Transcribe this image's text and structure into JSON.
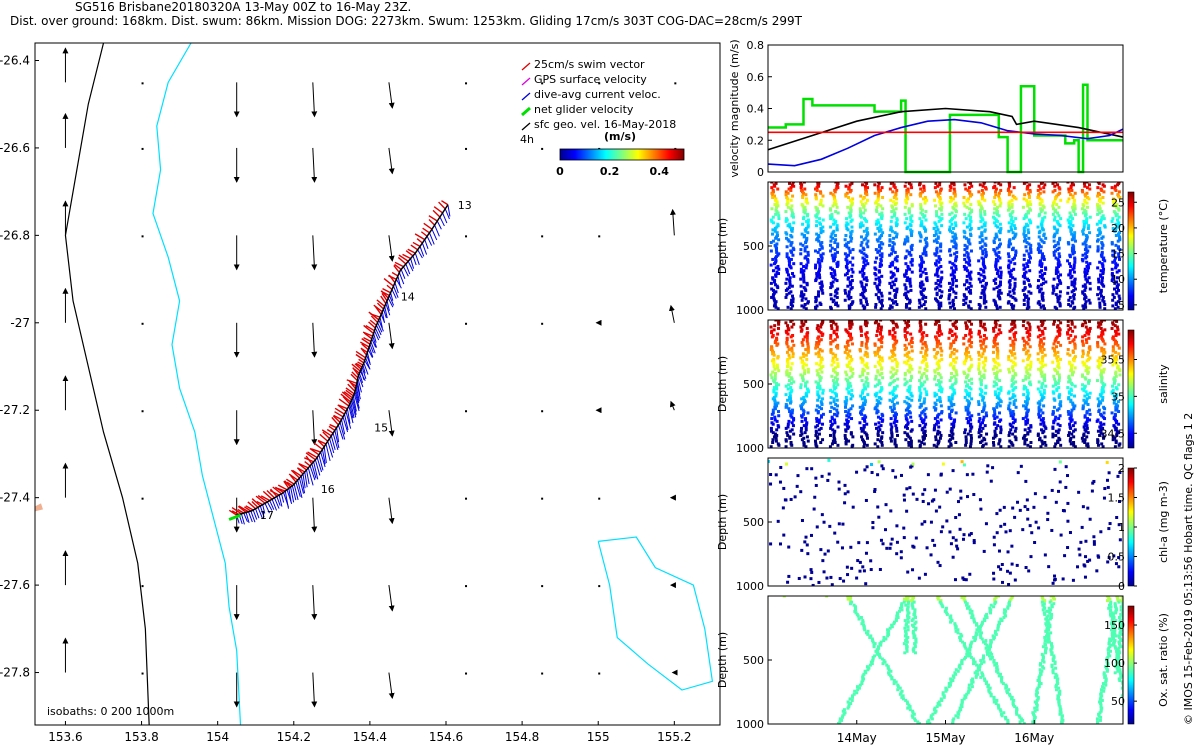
{
  "header": {
    "line1": "SG516 Brisbane20180320A 13-May 00Z to 16-May 23Z.",
    "line2": "Dist. over ground: 168km. Dist. swum: 86km. Mission DOG: 2273km. Swum: 1253km. Gliding 17cm/s 303T COG-DAC=28cm/s 299T"
  },
  "credit": "© IMOS 15-Feb-2019 05:13:56 Hobart time. QC flags 1  2",
  "colors": {
    "swim": "#e00000",
    "gps": "#e000e0",
    "dac": "#0000e0",
    "net": "#00e000",
    "coast": "#00e0ff",
    "isobath": "#000000",
    "ref": "#ff0000"
  },
  "chart_data": [
    {
      "type": "scatter",
      "name": "map",
      "title": "",
      "xlim": [
        153.52,
        155.32
      ],
      "ylim": [
        -27.92,
        -26.36
      ],
      "xticks": [
        "153.6",
        "153.8",
        "154",
        "154.2",
        "154.4",
        "154.6",
        "154.8",
        "155",
        "155.2"
      ],
      "xtick_values": [
        153.6,
        153.8,
        154.0,
        154.2,
        154.4,
        154.6,
        154.8,
        155.0,
        155.2
      ],
      "yticks": [
        "-26.4",
        "-26.6",
        "-26.8",
        "-27",
        "-27.2",
        "-27.4",
        "-27.6",
        "-27.8"
      ],
      "ytick_values": [
        -26.4,
        -26.6,
        -26.8,
        -27.0,
        -27.2,
        -27.4,
        -27.6,
        -27.8
      ],
      "legend": {
        "items": [
          "25cm/s swim vector",
          "GPS surface velocity",
          "dive-avg current veloc.",
          "net glider velocity",
          "sfc geo. vel. 16-May-2018"
        ],
        "time_label": "4h",
        "colorbar_title": "(m/s)",
        "colorbar_ticks": [
          "0",
          "0.2",
          "0.4"
        ],
        "colorbar_range": [
          0,
          0.5
        ]
      },
      "isobath_label": "isobaths: 0   200  1000m",
      "day_labels": [
        {
          "label": "13",
          "lon": 154.61,
          "lat": -26.73
        },
        {
          "label": "14",
          "lon": 154.46,
          "lat": -26.94
        },
        {
          "label": "15",
          "lon": 154.39,
          "lat": -27.24
        },
        {
          "label": "16",
          "lon": 154.25,
          "lat": -27.38
        },
        {
          "label": "17",
          "lon": 154.09,
          "lat": -27.44
        }
      ],
      "track": [
        [
          154.605,
          -26.73
        ],
        [
          154.56,
          -26.79
        ],
        [
          154.52,
          -26.84
        ],
        [
          154.48,
          -26.88
        ],
        [
          154.455,
          -26.93
        ],
        [
          154.435,
          -26.97
        ],
        [
          154.415,
          -27.01
        ],
        [
          154.4,
          -27.05
        ],
        [
          154.385,
          -27.09
        ],
        [
          154.37,
          -27.12
        ],
        [
          154.36,
          -27.16
        ],
        [
          154.345,
          -27.19
        ],
        [
          154.32,
          -27.23
        ],
        [
          154.29,
          -27.27
        ],
        [
          154.26,
          -27.31
        ],
        [
          154.23,
          -27.34
        ],
        [
          154.2,
          -27.37
        ],
        [
          154.17,
          -27.39
        ],
        [
          154.13,
          -27.41
        ],
        [
          154.09,
          -27.43
        ],
        [
          154.05,
          -27.44
        ]
      ],
      "surface_currents": {
        "lons": [
          153.6,
          153.8,
          154.05,
          154.25,
          154.45,
          154.65,
          154.85,
          155.0,
          155.2
        ],
        "lats": [
          -26.45,
          -26.6,
          -26.8,
          -27.0,
          -27.2,
          -27.4,
          -27.6,
          -27.8
        ],
        "u": [
          [
            0.0,
            0.0,
            0.0,
            0.01,
            0.02,
            0.0,
            0.0,
            0.0,
            0.0
          ],
          [
            0.0,
            0.0,
            0.0,
            0.01,
            0.02,
            0.0,
            0.0,
            0.0,
            0.0
          ],
          [
            0.0,
            0.0,
            0.0,
            0.01,
            0.02,
            0.0,
            0.0,
            0.0,
            -0.01
          ],
          [
            0.0,
            0.0,
            0.0,
            0.01,
            0.02,
            0.0,
            0.0,
            -0.01,
            -0.02
          ],
          [
            0.0,
            0.0,
            0.0,
            0.01,
            0.02,
            0.0,
            0.0,
            -0.01,
            -0.02
          ],
          [
            0.0,
            0.0,
            0.0,
            0.01,
            0.02,
            0.0,
            0.0,
            0.0,
            -0.02
          ],
          [
            0.0,
            0.0,
            0.0,
            0.01,
            0.02,
            0.0,
            0.0,
            0.0,
            -0.02
          ],
          [
            0.0,
            0.0,
            0.0,
            0.01,
            0.02,
            0.0,
            0.0,
            0.0,
            -0.01
          ]
        ],
        "v": [
          [
            0.2,
            0.0,
            -0.2,
            -0.2,
            -0.15,
            0.0,
            0.0,
            0.0,
            0.0
          ],
          [
            0.2,
            0.0,
            -0.2,
            -0.2,
            -0.15,
            0.0,
            0.0,
            0.0,
            0.0
          ],
          [
            0.2,
            0.0,
            -0.2,
            -0.2,
            -0.15,
            0.0,
            0.0,
            0.0,
            0.15
          ],
          [
            0.2,
            0.0,
            -0.2,
            -0.2,
            -0.15,
            0.0,
            0.0,
            0.0,
            0.1
          ],
          [
            0.2,
            0.0,
            -0.2,
            -0.2,
            -0.15,
            0.0,
            0.0,
            0.0,
            0.05
          ],
          [
            0.2,
            0.0,
            -0.2,
            -0.2,
            -0.15,
            0.0,
            0.0,
            0.0,
            0.0
          ],
          [
            0.2,
            0.0,
            -0.2,
            -0.2,
            -0.15,
            0.0,
            0.0,
            0.0,
            0.0
          ],
          [
            0.2,
            0.0,
            -0.2,
            -0.2,
            -0.15,
            0.0,
            0.0,
            0.0,
            0.0
          ]
        ]
      }
    },
    {
      "type": "line",
      "name": "velocity",
      "ylabel": "velocity magnitude (m/s)",
      "ylim": [
        0,
        0.8
      ],
      "yticks": [
        "0",
        "0.2",
        "0.4",
        "0.6",
        "0.8"
      ],
      "xlim": [
        0,
        4
      ],
      "series": [
        {
          "name": "net glider velocity",
          "color": "#00e000",
          "x": [
            0,
            0.2,
            0.2,
            0.4,
            0.4,
            0.5,
            0.5,
            1.2,
            1.2,
            1.5,
            1.5,
            1.55,
            1.55,
            2.05,
            2.05,
            2.6,
            2.6,
            2.7,
            2.7,
            2.85,
            2.85,
            3.0,
            3.0,
            3.35,
            3.35,
            3.45,
            3.45,
            3.5,
            3.5,
            3.55,
            3.55,
            3.6,
            3.6,
            4.0
          ],
          "y": [
            0.28,
            0.28,
            0.3,
            0.3,
            0.46,
            0.46,
            0.42,
            0.42,
            0.38,
            0.38,
            0.45,
            0.45,
            0.0,
            0.0,
            0.36,
            0.36,
            0.22,
            0.22,
            0.0,
            0.0,
            0.54,
            0.54,
            0.23,
            0.23,
            0.18,
            0.18,
            0.2,
            0.2,
            0.0,
            0.0,
            0.55,
            0.55,
            0.2,
            0.2
          ]
        },
        {
          "name": "sfc geo. vel.",
          "color": "#000000",
          "x": [
            0,
            0.5,
            1.0,
            1.5,
            2.0,
            2.5,
            2.75,
            2.8,
            3.0,
            3.5,
            4.0
          ],
          "y": [
            0.14,
            0.23,
            0.32,
            0.38,
            0.4,
            0.38,
            0.35,
            0.3,
            0.32,
            0.28,
            0.22
          ]
        },
        {
          "name": "dive-avg current veloc.",
          "color": "#0000e0",
          "x": [
            0,
            0.3,
            0.6,
            0.9,
            1.2,
            1.5,
            1.8,
            2.1,
            2.4,
            2.7,
            3.0,
            3.3,
            3.6,
            3.85,
            4.0
          ],
          "y": [
            0.05,
            0.04,
            0.08,
            0.15,
            0.23,
            0.28,
            0.32,
            0.33,
            0.31,
            0.26,
            0.24,
            0.23,
            0.21,
            0.23,
            0.27
          ]
        },
        {
          "name": "25cm/s reference",
          "color": "#ff0000",
          "x": [
            0,
            4.0
          ],
          "y": [
            0.25,
            0.25
          ]
        }
      ]
    },
    {
      "type": "scatter",
      "name": "temperature",
      "ylabel": "Depth (m)",
      "colorbar_label": "temperature (°C)",
      "colorbar_ticks": [
        "5",
        "10",
        "15",
        "20",
        "25"
      ],
      "ylim": [
        1000,
        0
      ],
      "yticks": [
        "500",
        "1000"
      ],
      "range": [
        4,
        27
      ],
      "profiles": 24
    },
    {
      "type": "scatter",
      "name": "salinity",
      "ylabel": "Depth (m)",
      "colorbar_label": "salinity",
      "colorbar_ticks": [
        "34.5",
        "35",
        "35.5"
      ],
      "ylim": [
        1000,
        0
      ],
      "yticks": [
        "500",
        "1000"
      ],
      "range": [
        34.3,
        35.9
      ],
      "profiles": 24
    },
    {
      "type": "scatter",
      "name": "chl-a",
      "ylabel": "Depth (m)",
      "colorbar_label": "chl-a (mg m-3)",
      "colorbar_ticks": [
        "0",
        "0.5",
        "1",
        "1.5",
        "2"
      ],
      "ylim": [
        1000,
        0
      ],
      "yticks": [
        "500",
        "1000"
      ],
      "range": [
        0,
        2
      ]
    },
    {
      "type": "scatter",
      "name": "oxygen",
      "ylabel": "Depth (m)",
      "colorbar_label": "Ox. sat. ratio (%)",
      "colorbar_ticks": [
        "50",
        "100",
        "150"
      ],
      "ylim": [
        1000,
        0
      ],
      "yticks": [
        "500",
        "1000"
      ],
      "range": [
        20,
        175
      ],
      "xticks": [
        "14May",
        "15May",
        "16May"
      ],
      "xtick_values": [
        1,
        2,
        3
      ]
    }
  ]
}
